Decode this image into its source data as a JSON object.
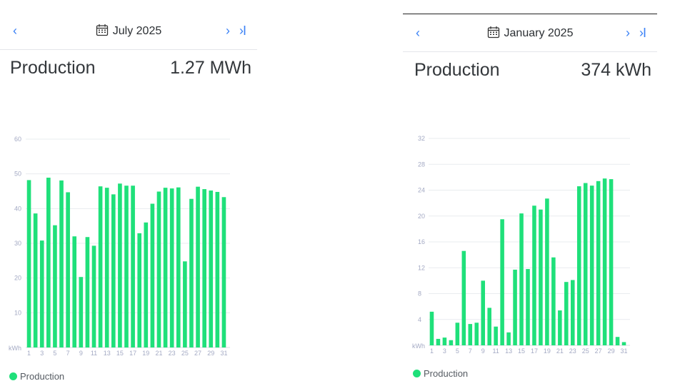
{
  "panels": [
    {
      "month": "July 2025",
      "title": "Production",
      "total": "1.27 MWh",
      "nav": {
        "prev": "‹",
        "next": "›",
        "last": "›I"
      },
      "legend": "Production"
    },
    {
      "month": "January 2025",
      "title": "Production",
      "total": "374 kWh",
      "nav": {
        "prev": "‹",
        "next": "›",
        "last": "›I"
      },
      "legend": "Production"
    }
  ],
  "colors": {
    "bar": "#1fe07a",
    "accent": "#3b82f6"
  },
  "chart_data": [
    {
      "type": "bar",
      "ylabel": "kWh",
      "ylim": [
        0,
        60
      ],
      "yticks": [
        10,
        20,
        30,
        40,
        50,
        60
      ],
      "categories": [
        1,
        2,
        3,
        4,
        5,
        6,
        7,
        8,
        9,
        10,
        11,
        12,
        13,
        14,
        15,
        16,
        17,
        18,
        19,
        20,
        21,
        22,
        23,
        24,
        25,
        26,
        27,
        28,
        29,
        30,
        31
      ],
      "xtick_labels": [
        "1",
        "3",
        "5",
        "7",
        "9",
        "11",
        "13",
        "15",
        "17",
        "19",
        "21",
        "23",
        "25",
        "27",
        "29",
        "31"
      ],
      "grid": true,
      "legend_position": "bottom-left",
      "series": [
        {
          "name": "Production",
          "values": [
            48.2,
            38.6,
            30.8,
            48.9,
            35.2,
            48.1,
            44.7,
            32,
            20.3,
            31.8,
            29.3,
            46.4,
            46,
            44.1,
            47.2,
            46.6,
            46.6,
            32.9,
            36,
            41.4,
            44.9,
            46,
            45.8,
            46.1,
            24.8,
            42.8,
            46.3,
            45.6,
            45.2,
            44.8,
            43.3
          ]
        }
      ]
    },
    {
      "type": "bar",
      "ylabel": "kWh",
      "ylim": [
        0,
        32
      ],
      "yticks": [
        4,
        8,
        12,
        16,
        20,
        24,
        28,
        32
      ],
      "categories": [
        1,
        2,
        3,
        4,
        5,
        6,
        7,
        8,
        9,
        10,
        11,
        12,
        13,
        14,
        15,
        16,
        17,
        18,
        19,
        20,
        21,
        22,
        23,
        24,
        25,
        26,
        27,
        28,
        29,
        30,
        31
      ],
      "xtick_labels": [
        "1",
        "3",
        "5",
        "7",
        "9",
        "11",
        "13",
        "15",
        "17",
        "19",
        "21",
        "23",
        "25",
        "27",
        "29",
        "31"
      ],
      "grid": true,
      "legend_position": "bottom-left",
      "series": [
        {
          "name": "Production",
          "values": [
            5.2,
            1,
            1.2,
            0.8,
            3.5,
            14.6,
            3.3,
            3.5,
            10,
            5.8,
            2.9,
            19.5,
            2,
            11.7,
            20.4,
            11.8,
            21.6,
            21,
            22.7,
            13.6,
            5.4,
            9.8,
            10.1,
            24.6,
            25.1,
            24.7,
            25.4,
            25.8,
            25.7,
            1.3,
            0.5
          ]
        }
      ]
    }
  ]
}
